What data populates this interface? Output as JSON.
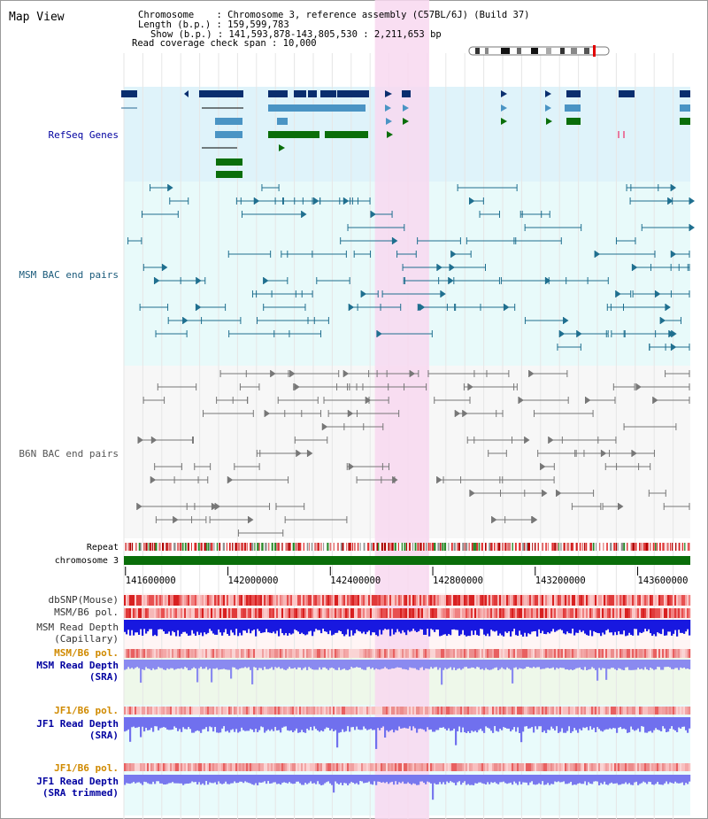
{
  "page": {
    "title": "Map View"
  },
  "header": {
    "lines": [
      "Chromosome    : Chromosome 3, reference assembly (C57BL/6J) (Build 37)",
      "Length (b.p.) : 159,599,783",
      "Show (b.p.) : 141,593,878-143,805,530 : 2,211,653 bp",
      "Read coverage check span : 10,000"
    ]
  },
  "tracks": {
    "refseq_label": "RefSeq Genes",
    "msm_bac_label": "MSM BAC end pairs",
    "b6n_bac_label": "B6N BAC end pairs",
    "repeat_label": "Repeat",
    "chromosome_label": "chromosome 3",
    "dbsnp_label": "dbSNP(Mouse)",
    "msm_b6_pol_label": "MSM/B6 pol.",
    "msm_depth_cap_label_1": "MSM Read Depth",
    "msm_depth_cap_label_2": "(Capillary)",
    "msm_b6_pol_sra_label": "MSM/B6 pol.",
    "msm_depth_sra_label_1": "MSM Read Depth",
    "msm_depth_sra_label_2": "(SRA)",
    "jf1_pol_label": "JF1/B6 pol.",
    "jf1_depth_label_1": "JF1 Read Depth",
    "jf1_depth_label_2": "(SRA)",
    "jf1_pol_trim_label": "JF1/B6 pol.",
    "jf1_depth_trim_label_1": "JF1 Read Depth",
    "jf1_depth_trim_label_2": "(SRA trimmed)"
  },
  "axis": {
    "range": [
      141593878,
      143805530
    ],
    "ticks": [
      "141600000",
      "142000000",
      "142400000",
      "142800000",
      "143200000",
      "143600000"
    ]
  },
  "highlight": {
    "start": 142574000,
    "end": 142786000
  },
  "colors": {
    "refseq_bg": "#dff3fa",
    "msm_bg": "#e8fafa",
    "b6n_bg": "#f7f7f7",
    "sra_bg": "#eef8ea",
    "jf1_bg": "#e9fbfb",
    "highlight": "#f8d8f0",
    "gene_dark": "#0a2e6e",
    "gene_light": "#4a94c4",
    "gene_green": "#0a6e0a",
    "msm_pair": "#1f6f8f",
    "b6n_pair": "#777777",
    "chromosome": "#0a6e0a",
    "label_blue": "#0000a0",
    "label_teal": "#1a5a7a",
    "label_orange": "#d08a00",
    "label_gray": "#555555"
  }
}
